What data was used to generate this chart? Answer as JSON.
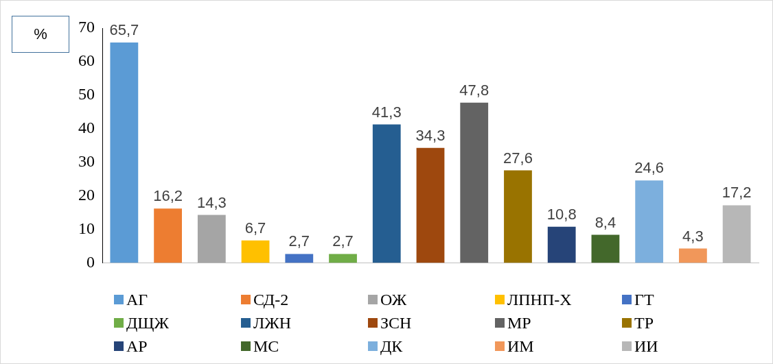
{
  "chart_data": {
    "type": "bar",
    "ylabel": "%",
    "categories": [
      null,
      null,
      null,
      null,
      null,
      null,
      null,
      null,
      null,
      null,
      null,
      null,
      null,
      null,
      null
    ],
    "series": [
      {
        "name": "АГ",
        "color": "#5b9bd5",
        "values": [
          65.7,
          null,
          null,
          null,
          null,
          null,
          null,
          null,
          null,
          null,
          null,
          null,
          null,
          null,
          null
        ],
        "value_labels": [
          "65,7",
          null,
          null,
          null,
          null,
          null,
          null,
          null,
          null,
          null,
          null,
          null,
          null,
          null,
          null
        ]
      },
      {
        "name": "СД-2",
        "color": "#ed7d31",
        "values": [
          null,
          16.2,
          null,
          null,
          null,
          null,
          null,
          null,
          null,
          null,
          null,
          null,
          null,
          null,
          null
        ],
        "value_labels": [
          null,
          "16,2",
          null,
          null,
          null,
          null,
          null,
          null,
          null,
          null,
          null,
          null,
          null,
          null,
          null
        ]
      },
      {
        "name": "ОЖ",
        "color": "#a5a5a5",
        "values": [
          null,
          null,
          14.3,
          null,
          null,
          null,
          null,
          null,
          null,
          null,
          null,
          null,
          null,
          null,
          null
        ],
        "value_labels": [
          null,
          null,
          "14,3",
          null,
          null,
          null,
          null,
          null,
          null,
          null,
          null,
          null,
          null,
          null,
          null
        ]
      },
      {
        "name": "ЛПНП-Х",
        "color": "#ffc000",
        "values": [
          null,
          null,
          null,
          6.7,
          null,
          null,
          null,
          null,
          null,
          null,
          null,
          null,
          null,
          null,
          null
        ],
        "value_labels": [
          null,
          null,
          null,
          "6,7",
          null,
          null,
          null,
          null,
          null,
          null,
          null,
          null,
          null,
          null,
          null
        ]
      },
      {
        "name": "ГТ",
        "color": "#4472c4",
        "values": [
          null,
          null,
          null,
          null,
          2.7,
          null,
          null,
          null,
          null,
          null,
          null,
          null,
          null,
          null,
          null
        ],
        "value_labels": [
          null,
          null,
          null,
          null,
          "2,7",
          null,
          null,
          null,
          null,
          null,
          null,
          null,
          null,
          null,
          null
        ]
      },
      {
        "name": "ДЩЖ",
        "color": "#70ad47",
        "values": [
          null,
          null,
          null,
          null,
          null,
          2.7,
          null,
          null,
          null,
          null,
          null,
          null,
          null,
          null,
          null
        ],
        "value_labels": [
          null,
          null,
          null,
          null,
          null,
          "2,7",
          null,
          null,
          null,
          null,
          null,
          null,
          null,
          null,
          null
        ]
      },
      {
        "name": "ЛЖН",
        "color": "#255e91",
        "values": [
          null,
          null,
          null,
          null,
          null,
          null,
          41.3,
          null,
          null,
          null,
          null,
          null,
          null,
          null,
          null
        ],
        "value_labels": [
          null,
          null,
          null,
          null,
          null,
          null,
          "41,3",
          null,
          null,
          null,
          null,
          null,
          null,
          null,
          null
        ]
      },
      {
        "name": "ЗСН",
        "color": "#9e480e",
        "values": [
          null,
          null,
          null,
          null,
          null,
          null,
          null,
          34.3,
          null,
          null,
          null,
          null,
          null,
          null,
          null
        ],
        "value_labels": [
          null,
          null,
          null,
          null,
          null,
          null,
          null,
          "34,3",
          null,
          null,
          null,
          null,
          null,
          null,
          null
        ]
      },
      {
        "name": "МР",
        "color": "#636363",
        "values": [
          null,
          null,
          null,
          null,
          null,
          null,
          null,
          null,
          47.8,
          null,
          null,
          null,
          null,
          null,
          null
        ],
        "value_labels": [
          null,
          null,
          null,
          null,
          null,
          null,
          null,
          null,
          "47,8",
          null,
          null,
          null,
          null,
          null,
          null
        ]
      },
      {
        "name": "ТР",
        "color": "#997300",
        "values": [
          null,
          null,
          null,
          null,
          null,
          null,
          null,
          null,
          null,
          27.6,
          null,
          null,
          null,
          null,
          null
        ],
        "value_labels": [
          null,
          null,
          null,
          null,
          null,
          null,
          null,
          null,
          null,
          "27,6",
          null,
          null,
          null,
          null,
          null
        ]
      },
      {
        "name": "АР",
        "color": "#264478",
        "values": [
          null,
          null,
          null,
          null,
          null,
          null,
          null,
          null,
          null,
          null,
          10.8,
          null,
          null,
          null,
          null
        ],
        "value_labels": [
          null,
          null,
          null,
          null,
          null,
          null,
          null,
          null,
          null,
          null,
          "10,8",
          null,
          null,
          null,
          null
        ]
      },
      {
        "name": "МС",
        "color": "#43682b",
        "values": [
          null,
          null,
          null,
          null,
          null,
          null,
          null,
          null,
          null,
          null,
          null,
          8.4,
          null,
          null,
          null
        ],
        "value_labels": [
          null,
          null,
          null,
          null,
          null,
          null,
          null,
          null,
          null,
          null,
          null,
          "8,4",
          null,
          null,
          null
        ]
      },
      {
        "name": "ДК",
        "color": "#7cafdd",
        "values": [
          null,
          null,
          null,
          null,
          null,
          null,
          null,
          null,
          null,
          null,
          null,
          null,
          24.6,
          null,
          null
        ],
        "value_labels": [
          null,
          null,
          null,
          null,
          null,
          null,
          null,
          null,
          null,
          null,
          null,
          null,
          "24,6",
          null,
          null
        ]
      },
      {
        "name": "ИМ",
        "color": "#f1975a",
        "values": [
          null,
          null,
          null,
          null,
          null,
          null,
          null,
          null,
          null,
          null,
          null,
          null,
          null,
          4.3,
          null
        ],
        "value_labels": [
          null,
          null,
          null,
          null,
          null,
          null,
          null,
          null,
          null,
          null,
          null,
          null,
          null,
          "4,3",
          null
        ]
      },
      {
        "name": "ИИ",
        "color": "#b7b7b7",
        "values": [
          null,
          null,
          null,
          null,
          null,
          null,
          null,
          null,
          null,
          null,
          null,
          null,
          null,
          null,
          17.2
        ],
        "value_labels": [
          null,
          null,
          null,
          null,
          null,
          null,
          null,
          null,
          null,
          null,
          null,
          null,
          null,
          null,
          "17,2"
        ]
      }
    ],
    "ylim": [
      0,
      70
    ],
    "yticks": [
      0,
      10,
      20,
      30,
      40,
      50,
      60,
      70
    ],
    "grid": false,
    "legend": "bottom"
  }
}
